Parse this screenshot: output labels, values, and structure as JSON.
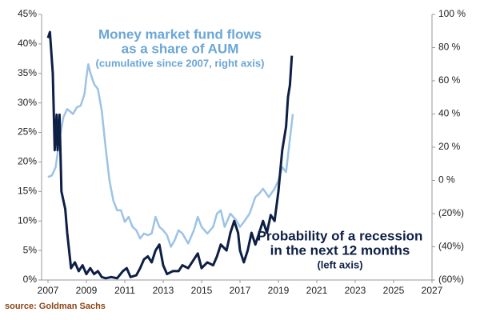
{
  "chart_data": {
    "type": "line",
    "annotations": [
      {
        "lines": [
          "Money market fund flows",
          "as a share of AUM",
          "(cumulative since 2007, right axis)"
        ],
        "color": "#6aa6d6"
      },
      {
        "lines": [
          "Probability of a recession",
          "in the next 12 months",
          "(left axis)"
        ],
        "color": "#0d1f45"
      }
    ],
    "source": "source: Goldman Sachs",
    "xlim": [
      2007,
      2027
    ],
    "xticks": [
      2007,
      2009,
      2011,
      2013,
      2015,
      2017,
      2019,
      2021,
      2023,
      2025,
      2027
    ],
    "ylim": [
      0,
      45
    ],
    "yticks": [
      {
        "value": 0,
        "label": "0%"
      },
      {
        "value": 5,
        "label": "5%"
      },
      {
        "value": 10,
        "label": "10%"
      },
      {
        "value": 15,
        "label": "15%"
      },
      {
        "value": 20,
        "label": "20%"
      },
      {
        "value": 25,
        "label": "25%"
      },
      {
        "value": 30,
        "label": "30%"
      },
      {
        "value": 35,
        "label": "35%"
      },
      {
        "value": 40,
        "label": "40%"
      },
      {
        "value": 45,
        "label": "45%"
      }
    ],
    "y2lim": [
      -60,
      100
    ],
    "y2ticks": [
      {
        "value": -60,
        "label": "(60%)"
      },
      {
        "value": -40,
        "label": "(40%)"
      },
      {
        "value": -20,
        "label": "(20%)"
      },
      {
        "value": 0,
        "label": "0 %"
      },
      {
        "value": 20,
        "label": "20 %"
      },
      {
        "value": 40,
        "label": "40 %"
      },
      {
        "value": 60,
        "label": "60 %"
      },
      {
        "value": 80,
        "label": "80 %"
      },
      {
        "value": 100,
        "label": "100 %"
      }
    ],
    "series": [
      {
        "color": "#9cc3e6",
        "axis": "y2",
        "x": [
          2007.0,
          2007.2,
          2007.4,
          2007.6,
          2007.8,
          2008.0,
          2008.3,
          2008.5,
          2008.7,
          2008.9,
          2009.0,
          2009.1,
          2009.2,
          2009.4,
          2009.6,
          2009.8,
          2010.0,
          2010.2,
          2010.4,
          2010.6,
          2010.8,
          2011.0,
          2011.2,
          2011.4,
          2011.6,
          2011.8,
          2012.0,
          2012.2,
          2012.4,
          2012.6,
          2012.8,
          2013.0,
          2013.2,
          2013.4,
          2013.6,
          2013.8,
          2014.0,
          2014.3,
          2014.6,
          2014.8,
          2015.0,
          2015.3,
          2015.6,
          2015.8,
          2016.0,
          2016.2,
          2016.5,
          2016.8,
          2017.0,
          2017.2,
          2017.5,
          2017.8,
          2018.0,
          2018.2,
          2018.5,
          2018.8,
          2019.0,
          2019.2,
          2019.4,
          2019.6,
          2019.75
        ],
        "values": [
          2,
          3,
          8,
          25,
          38,
          43,
          40,
          44,
          45,
          52,
          62,
          70,
          65,
          58,
          55,
          42,
          20,
          0,
          -12,
          -18,
          -18,
          -25,
          -22,
          -28,
          -30,
          -35,
          -32,
          -33,
          -32,
          -22,
          -28,
          -30,
          -33,
          -40,
          -36,
          -30,
          -32,
          -38,
          -30,
          -22,
          -28,
          -32,
          -28,
          -20,
          -18,
          -28,
          -20,
          -24,
          -28,
          -25,
          -20,
          -10,
          -8,
          -5,
          -10,
          -5,
          0,
          8,
          5,
          25,
          40
        ]
      },
      {
        "color": "#0d1f45",
        "axis": "y",
        "x": [
          2007.0,
          2007.1,
          2007.25,
          2007.35,
          2007.45,
          2007.5,
          2007.6,
          2007.7,
          2007.9,
          2008.0,
          2008.1,
          2008.2,
          2008.4,
          2008.6,
          2008.8,
          2009.0,
          2009.2,
          2009.4,
          2009.6,
          2009.8,
          2010.0,
          2010.3,
          2010.6,
          2010.9,
          2011.1,
          2011.3,
          2011.6,
          2011.8,
          2012.0,
          2012.2,
          2012.4,
          2012.6,
          2012.8,
          2013.0,
          2013.2,
          2013.5,
          2013.8,
          2014.0,
          2014.3,
          2014.5,
          2014.8,
          2015.0,
          2015.3,
          2015.6,
          2015.8,
          2016.0,
          2016.3,
          2016.5,
          2016.7,
          2016.9,
          2017.0,
          2017.2,
          2017.4,
          2017.6,
          2017.8,
          2018.0,
          2018.2,
          2018.4,
          2018.6,
          2018.8,
          2019.0,
          2019.2,
          2019.4,
          2019.5,
          2019.6,
          2019.7
        ],
        "values": [
          41,
          42,
          35,
          22,
          28,
          22,
          28,
          15,
          12,
          8,
          5,
          2,
          3,
          1.5,
          2.5,
          1,
          2,
          1,
          1.5,
          0.5,
          0.3,
          0.5,
          0.3,
          1.5,
          2,
          0.5,
          0.8,
          2,
          3.5,
          4,
          3,
          5,
          6,
          2.5,
          1,
          1.5,
          1.5,
          2.5,
          2,
          3,
          4.5,
          2,
          3,
          2.5,
          4,
          6,
          5,
          8,
          10,
          8,
          5,
          3,
          5,
          8,
          6,
          8,
          10,
          8,
          11,
          10,
          15,
          22,
          26,
          31,
          33,
          38
        ]
      }
    ]
  }
}
